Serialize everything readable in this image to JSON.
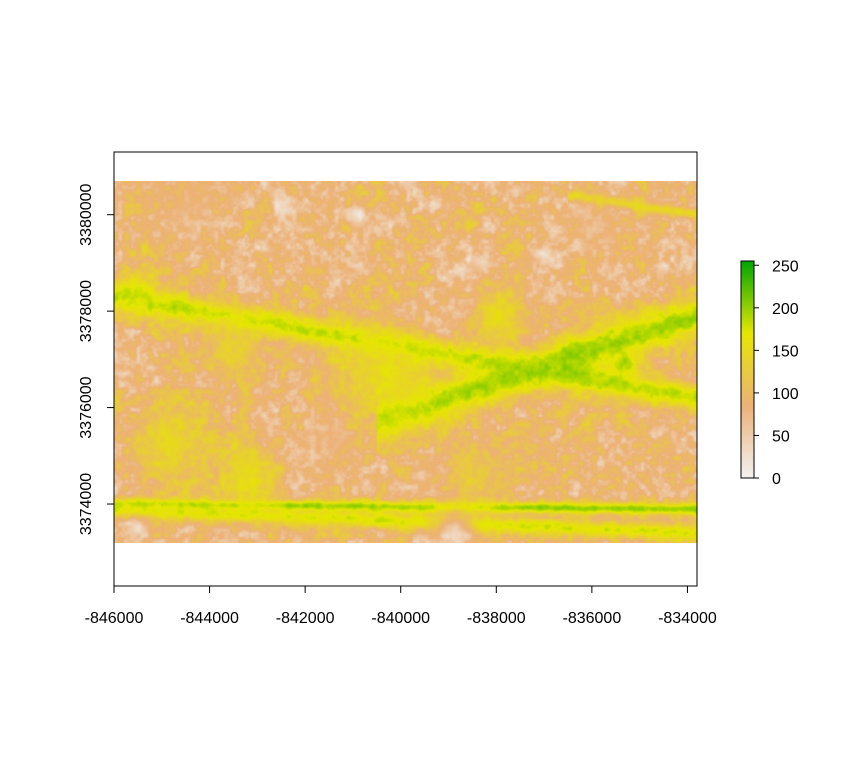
{
  "chart_data": {
    "type": "heatmap",
    "title": "",
    "xlabel": "",
    "ylabel": "",
    "xlim": [
      -846000,
      -833800
    ],
    "ylim": [
      3372300,
      3381300
    ],
    "raster_extent": {
      "x": [
        -846000,
        -833800
      ],
      "y": [
        3373200,
        3380700
      ]
    },
    "x_ticks": [
      -846000,
      -844000,
      -842000,
      -840000,
      -838000,
      -836000,
      -834000
    ],
    "x_tick_labels": [
      "-846000",
      "-844000",
      "-842000",
      "-840000",
      "-838000",
      "-836000",
      "-834000"
    ],
    "y_ticks": [
      3374000,
      3376000,
      3378000,
      3380000
    ],
    "y_tick_labels": [
      "3374000",
      "3376000",
      "3378000",
      "3380000"
    ],
    "value_range": [
      0,
      255
    ],
    "colorbar": {
      "ticks": [
        0,
        50,
        100,
        150,
        200,
        250
      ],
      "tick_labels": [
        "0",
        "50",
        "100",
        "150",
        "200",
        "250"
      ],
      "colors": [
        "#f2f2f2",
        "#ecb176",
        "#e6e600",
        "#00a600"
      ]
    },
    "features": [
      {
        "type": "band",
        "x0": -846000,
        "x1": -833800,
        "ya": 3378300,
        "yb": 3376200,
        "value": 185,
        "width": 420
      },
      {
        "type": "band",
        "x0": -840500,
        "x1": -833800,
        "ya": 3375700,
        "yb": 3377900,
        "value": 195,
        "width": 650
      },
      {
        "type": "band",
        "x0": -846000,
        "x1": -833800,
        "ya": 3374000,
        "yb": 3373900,
        "value": 200,
        "width": 180
      },
      {
        "type": "band",
        "x0": -846000,
        "x1": -833800,
        "ya": 3373900,
        "yb": 3373400,
        "value": 175,
        "width": 260
      },
      {
        "type": "band",
        "x0": -836500,
        "x1": -833800,
        "ya": 3380400,
        "yb": 3380000,
        "value": 150,
        "width": 160
      },
      {
        "type": "blob",
        "x": -840300,
        "y": 3376600,
        "r": 1300,
        "value": 165
      },
      {
        "type": "blob",
        "x": -837900,
        "y": 3377900,
        "r": 700,
        "value": 165
      },
      {
        "type": "blob",
        "x": -836400,
        "y": 3377000,
        "r": 450,
        "value": 200
      },
      {
        "type": "blob",
        "x": -835300,
        "y": 3376900,
        "r": 420,
        "value": 200
      },
      {
        "type": "blob",
        "x": -844800,
        "y": 3375300,
        "r": 1100,
        "value": 150
      },
      {
        "type": "blob",
        "x": -843200,
        "y": 3374500,
        "r": 800,
        "value": 160
      },
      {
        "type": "blob",
        "x": -838500,
        "y": 3374600,
        "r": 900,
        "value": 130
      },
      {
        "type": "blob",
        "x": -843500,
        "y": 3377200,
        "r": 800,
        "value": 140
      },
      {
        "type": "blob",
        "x": -845600,
        "y": 3378400,
        "r": 600,
        "value": 180
      },
      {
        "type": "blob",
        "x": -840900,
        "y": 3380000,
        "r": 300,
        "value": 15
      },
      {
        "type": "blob",
        "x": -842500,
        "y": 3380200,
        "r": 280,
        "value": 20
      },
      {
        "type": "blob",
        "x": -838300,
        "y": 3379000,
        "r": 280,
        "value": 25
      },
      {
        "type": "blob",
        "x": -837000,
        "y": 3379200,
        "r": 300,
        "value": 30
      },
      {
        "type": "blob",
        "x": -835900,
        "y": 3379700,
        "r": 600,
        "value": 70
      },
      {
        "type": "blob",
        "x": -845500,
        "y": 3373500,
        "r": 300,
        "value": 30
      },
      {
        "type": "blob",
        "x": -838900,
        "y": 3373400,
        "r": 500,
        "value": 30
      },
      {
        "type": "blob",
        "x": -844500,
        "y": 3380300,
        "r": 900,
        "value": 85
      },
      {
        "type": "blob",
        "x": -841500,
        "y": 3375300,
        "r": 700,
        "value": 80
      }
    ]
  }
}
